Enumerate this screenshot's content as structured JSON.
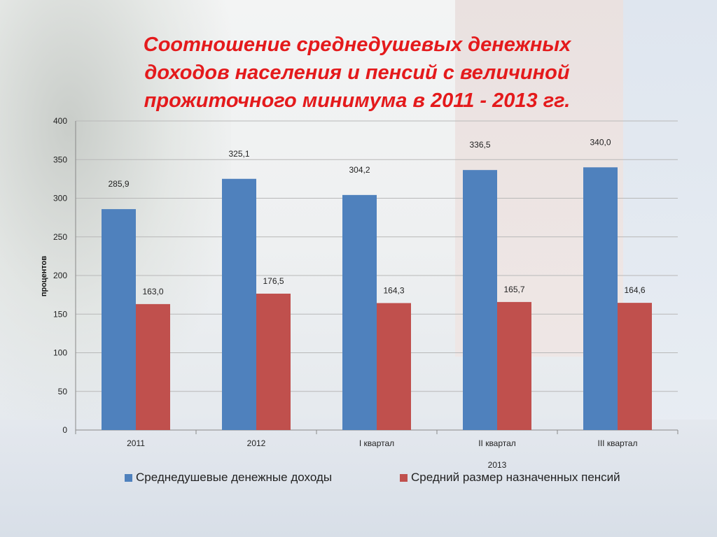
{
  "title": "Соотношение среднедушевых денежных доходов населения и пенсий с величиной прожиточного минимума в 2011 - 2013 гг.",
  "chart_data": {
    "type": "bar",
    "title": "Соотношение среднедушевых денежных доходов населения и пенсий с величиной прожиточного минимума в 2011 - 2013 гг.",
    "categories": [
      "2011",
      "2012",
      "I квартал",
      "II квартал",
      "III квартал"
    ],
    "category_group": {
      "label": "2013",
      "spans": [
        "I квартал",
        "II квартал",
        "III квартал"
      ]
    },
    "ylabel": "процентов",
    "xlabel": "",
    "ylim": [
      0,
      400
    ],
    "yticks": [
      0,
      50,
      100,
      150,
      200,
      250,
      300,
      350,
      400
    ],
    "grid": true,
    "legend_position": "bottom",
    "series": [
      {
        "name": "Среднедушевые денежные доходы",
        "color": "#4f81bd",
        "values": [
          285.9,
          325.1,
          304.2,
          336.5,
          340.0
        ],
        "labels": [
          "285,9",
          "325,1",
          "304,2",
          "336,5",
          "340,0"
        ]
      },
      {
        "name": "Средний размер назначенных пенсий",
        "color": "#c0504d",
        "values": [
          163.0,
          176.5,
          164.3,
          165.7,
          164.6
        ],
        "labels": [
          "163,0",
          "176,5",
          "164,3",
          "165,7",
          "164,6"
        ]
      }
    ]
  }
}
